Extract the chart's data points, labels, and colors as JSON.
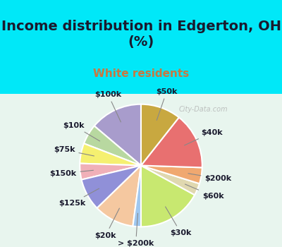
{
  "title": "Income distribution in Edgerton, OH\n(%)",
  "subtitle": "White residents",
  "labels": [
    "$100k",
    "$10k",
    "$75k",
    "$150k",
    "$125k",
    "$20k",
    "> $200k",
    "$30k",
    "$60k",
    "$200k",
    "$40k",
    "$50k"
  ],
  "values": [
    13,
    5,
    5,
    4,
    8,
    10,
    2,
    16,
    3,
    4,
    14,
    10
  ],
  "colors": [
    "#a89ccc",
    "#b8d8a0",
    "#f5f070",
    "#f0b0b8",
    "#9090d8",
    "#f5c8a0",
    "#a0c8f0",
    "#c8e870",
    "#e0d8b0",
    "#f0a870",
    "#e87070",
    "#c8a840"
  ],
  "bg_top": "#00e8f8",
  "bg_chart": "#e8f5ee",
  "title_color": "#1a1a2e",
  "subtitle_color": "#c87840",
  "watermark": "City-Data.com",
  "label_fontsize": 8,
  "title_fontsize": 14
}
